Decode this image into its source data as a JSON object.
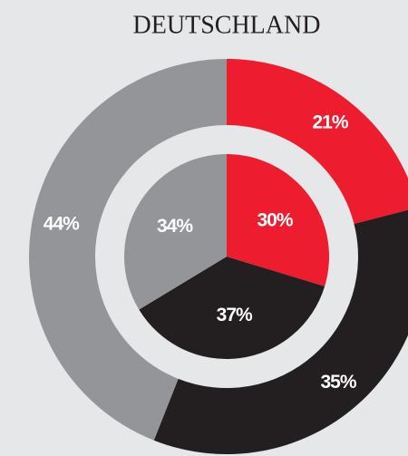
{
  "chart_data": [
    {
      "type": "donut",
      "title": "DEUTSCHLAND",
      "values": [
        21,
        35,
        44
      ],
      "value_labels": [
        "21%",
        "35%",
        "44%"
      ],
      "colors": [
        "#ed1c2e",
        "#231f20",
        "#939598"
      ]
    },
    {
      "type": "pie",
      "values": [
        30,
        37,
        34
      ],
      "value_labels": [
        "30%",
        "37%",
        "34%"
      ],
      "colors": [
        "#ed1c2e",
        "#231f20",
        "#939598"
      ]
    }
  ]
}
